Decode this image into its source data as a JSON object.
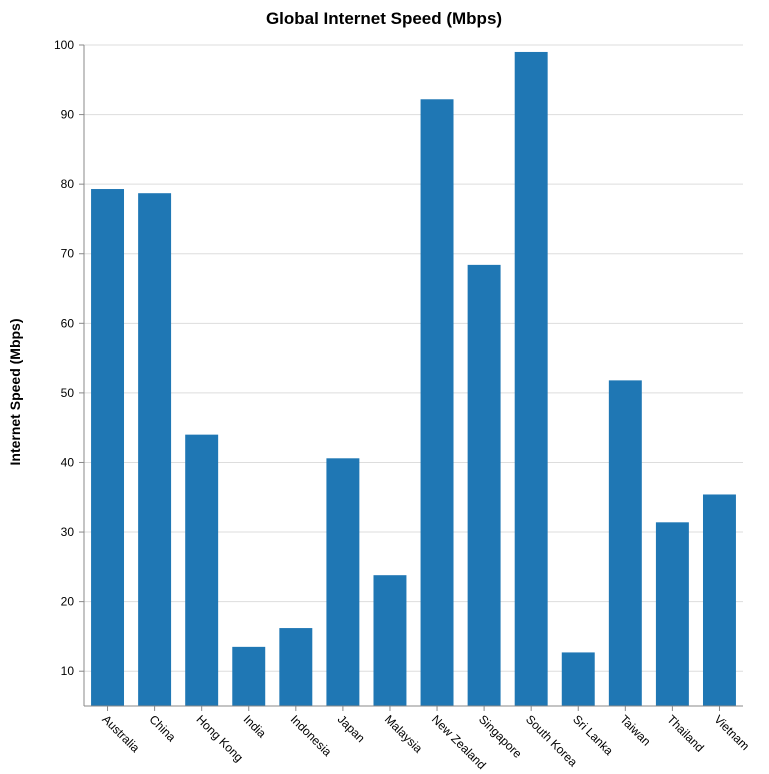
{
  "chart_data": {
    "type": "bar",
    "title": "Global Internet Speed (Mbps)",
    "xlabel": "",
    "ylabel": "Internet Speed (Mbps)",
    "categories": [
      "Australia",
      "China",
      "Hong Kong",
      "India",
      "Indonesia",
      "Japan",
      "Malaysia",
      "New Zealand",
      "Singapore",
      "South Korea",
      "Sri Lanka",
      "Taiwan",
      "Thailand",
      "Vietnam"
    ],
    "values": [
      79.3,
      78.7,
      44.0,
      13.5,
      16.2,
      40.6,
      23.8,
      92.2,
      68.4,
      99.0,
      12.7,
      51.8,
      31.4,
      35.4
    ],
    "ylim": [
      5,
      100
    ],
    "yticks": [
      10,
      20,
      30,
      40,
      50,
      60,
      70,
      80,
      90,
      100
    ],
    "grid": true,
    "color": "#1f77b4"
  }
}
